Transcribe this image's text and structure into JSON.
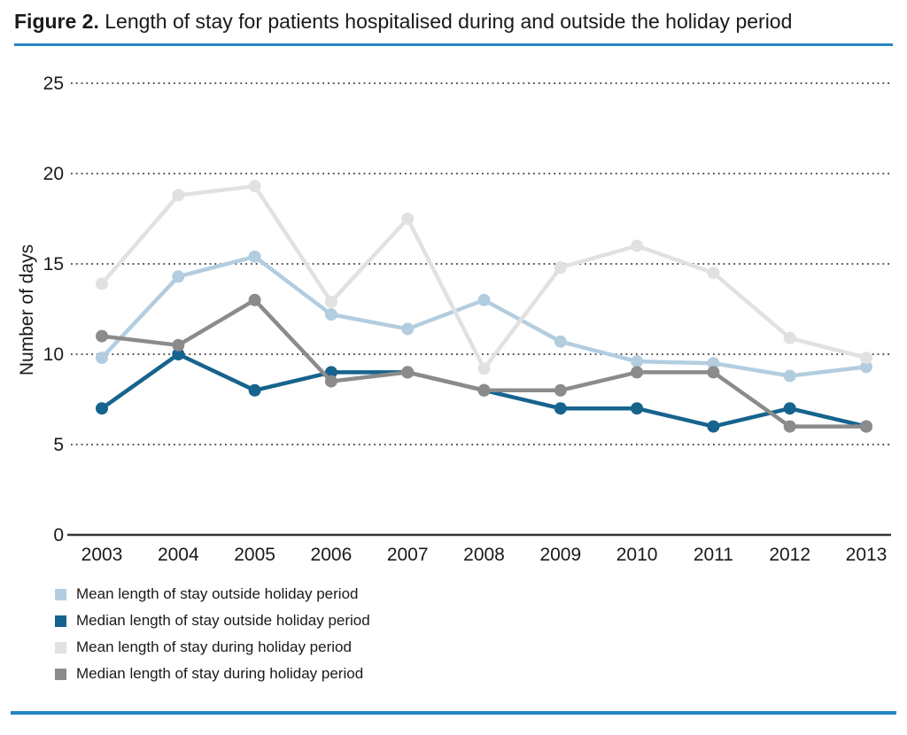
{
  "title": {
    "figure_label": "Figure 2.",
    "rest": " Length of stay for patients hospitalised during and outside the holiday period"
  },
  "colors": {
    "divider_blue": "#2786c4",
    "text": "#1a1a1a",
    "axis": "#333333",
    "gridline": "#3c3c3c"
  },
  "chart_data": {
    "type": "line",
    "title": "Length of stay for patients hospitalised during and outside the holiday period",
    "xlabel": "",
    "ylabel": "Number of days",
    "categories": [
      "2003",
      "2004",
      "2005",
      "2006",
      "2007",
      "2008",
      "2009",
      "2010",
      "2011",
      "2012",
      "2013"
    ],
    "yticks": [
      0,
      5,
      10,
      15,
      20,
      25
    ],
    "ylim": [
      0,
      25
    ],
    "grid": "horizontal dotted lines at 5,10,15,20,25",
    "legend_position": "bottom-left",
    "series": [
      {
        "name": "Mean length of stay outside holiday period",
        "color": "#b3cde0",
        "values": [
          9.8,
          14.3,
          15.4,
          12.2,
          11.4,
          13.0,
          10.7,
          9.6,
          9.5,
          8.8,
          9.3
        ]
      },
      {
        "name": "Median length of stay outside holiday period",
        "color": "#16638e",
        "values": [
          7,
          10,
          8,
          9,
          9,
          8,
          7,
          7,
          6,
          7,
          6
        ]
      },
      {
        "name": "Mean length of stay during holiday period",
        "color": "#e1e1e1",
        "values": [
          13.9,
          18.8,
          19.3,
          12.9,
          17.5,
          9.2,
          14.8,
          16.0,
          14.5,
          10.9,
          9.8
        ]
      },
      {
        "name": "Median length of stay during holiday period",
        "color": "#8b8b8b",
        "values": [
          11,
          10.5,
          13,
          8.5,
          9,
          8,
          8,
          9,
          9,
          6,
          6
        ]
      }
    ]
  }
}
